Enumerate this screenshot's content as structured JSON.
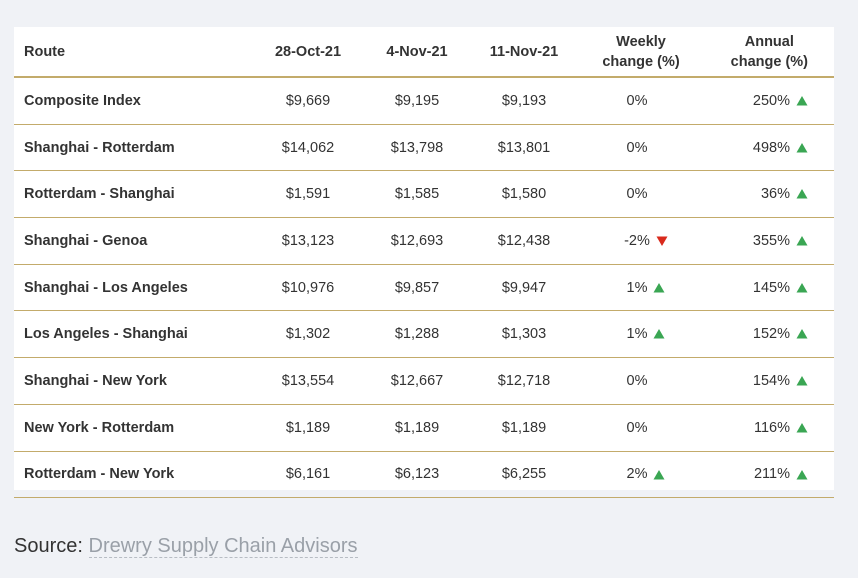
{
  "table": {
    "headers": {
      "route": "Route",
      "d1": "28-Oct-21",
      "d2": "4-Nov-21",
      "d3": "11-Nov-21",
      "weekly_l1": "Weekly",
      "weekly_l2": "change (%)",
      "annual_l1": "Annual",
      "annual_l2": "change (%)"
    },
    "rows": [
      {
        "route": "Composite Index",
        "d1": "$9,669",
        "d2": "$9,195",
        "d3": "$9,193",
        "weekly": "0%",
        "weekly_trend": "none",
        "annual": "250%",
        "annual_trend": "up"
      },
      {
        "route": "Shanghai - Rotterdam",
        "d1": "$14,062",
        "d2": "$13,798",
        "d3": "$13,801",
        "weekly": "0%",
        "weekly_trend": "none",
        "annual": "498%",
        "annual_trend": "up"
      },
      {
        "route": "Rotterdam - Shanghai",
        "d1": "$1,591",
        "d2": "$1,585",
        "d3": "$1,580",
        "weekly": "0%",
        "weekly_trend": "none",
        "annual": "36%",
        "annual_trend": "up"
      },
      {
        "route": "Shanghai - Genoa",
        "d1": "$13,123",
        "d2": "$12,693",
        "d3": "$12,438",
        "weekly": "-2%",
        "weekly_trend": "down",
        "annual": "355%",
        "annual_trend": "up"
      },
      {
        "route": "Shanghai - Los Angeles",
        "d1": "$10,976",
        "d2": "$9,857",
        "d3": "$9,947",
        "weekly": "1%",
        "weekly_trend": "up",
        "annual": "145%",
        "annual_trend": "up"
      },
      {
        "route": "Los Angeles - Shanghai",
        "d1": "$1,302",
        "d2": "$1,288",
        "d3": "$1,303",
        "weekly": "1%",
        "weekly_trend": "up",
        "annual": "152%",
        "annual_trend": "up"
      },
      {
        "route": "Shanghai - New York",
        "d1": "$13,554",
        "d2": "$12,667",
        "d3": "$12,718",
        "weekly": "0%",
        "weekly_trend": "none",
        "annual": "154%",
        "annual_trend": "up"
      },
      {
        "route": "New York - Rotterdam",
        "d1": "$1,189",
        "d2": "$1,189",
        "d3": "$1,189",
        "weekly": "0%",
        "weekly_trend": "none",
        "annual": "116%",
        "annual_trend": "up"
      },
      {
        "route": "Rotterdam - New York",
        "d1": "$6,161",
        "d2": "$6,123",
        "d3": "$6,255",
        "weekly": "2%",
        "weekly_trend": "up",
        "annual": "211%",
        "annual_trend": "up"
      }
    ]
  },
  "source": {
    "label": "Source:",
    "link_text": "Drewry Supply Chain Advisors"
  },
  "colors": {
    "up_arrow": "#3aa653",
    "down_arrow": "#d92a1c",
    "rule": "#c3ab6b",
    "background": "#f0f2f6"
  }
}
